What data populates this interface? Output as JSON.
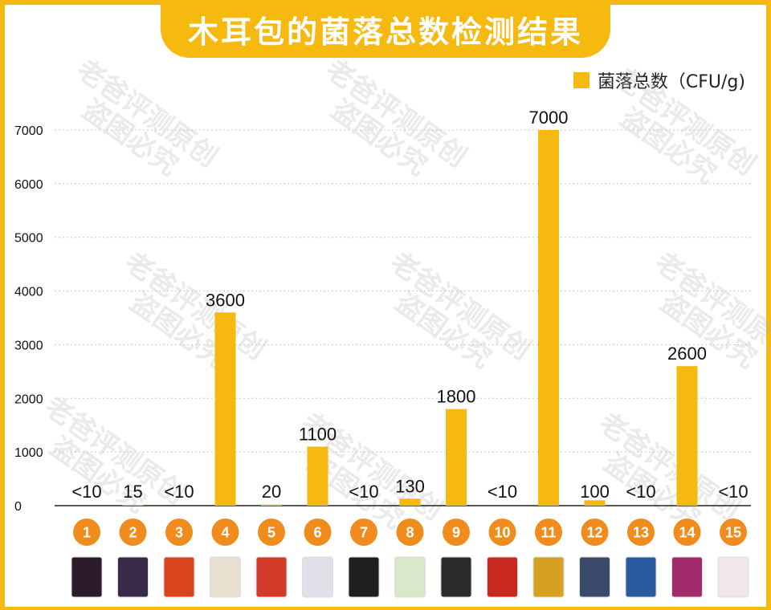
{
  "title": "木耳包的菌落总数检测结果",
  "legend": {
    "label": "菌落总数（CFU/g)",
    "color": "#F5B90F"
  },
  "watermark": {
    "line1": "老爸评测原创",
    "line2": "盗图必究"
  },
  "chart_data": {
    "type": "bar",
    "title": "木耳包的菌落总数检测结果",
    "series": [
      {
        "name": "菌落总数（CFU/g)"
      }
    ],
    "categories": [
      "1",
      "2",
      "3",
      "4",
      "5",
      "6",
      "7",
      "8",
      "9",
      "10",
      "11",
      "12",
      "13",
      "14",
      "15"
    ],
    "values": [
      0,
      15,
      0,
      3600,
      20,
      1100,
      0,
      130,
      1800,
      0,
      7000,
      100,
      0,
      2600,
      0
    ],
    "labels": [
      "<10",
      "15",
      "<10",
      "3600",
      "20",
      "1100",
      "<10",
      "130",
      "1800",
      "<10",
      "7000",
      "100",
      "<10",
      "2600",
      "<10"
    ],
    "yticks": [
      0,
      1000,
      2000,
      3000,
      4000,
      5000,
      6000,
      7000
    ],
    "ylim": [
      0,
      7000
    ],
    "grid": true,
    "legend_position": "top-right",
    "bar_color": "#F5B90F"
  }
}
